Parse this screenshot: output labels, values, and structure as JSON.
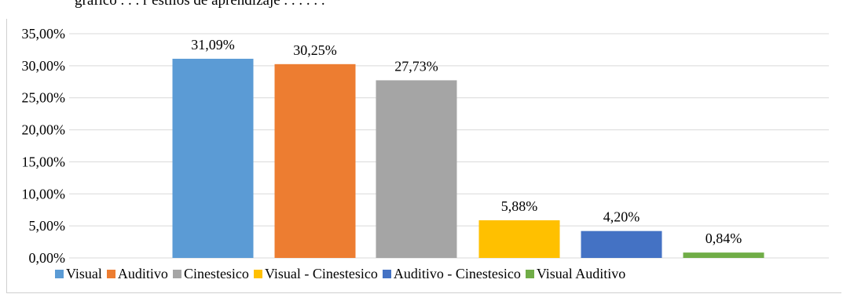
{
  "header": {
    "partial_text": "gráfico . . . r estilos de aprendizaje . . . . . ."
  },
  "chart_data": {
    "type": "bar",
    "categories": [
      "Visual",
      "Auditivo",
      "Cinestesico",
      "Visual - Cinestesico",
      "Auditivo - Cinestesico",
      "Visual Auditivo"
    ],
    "values": [
      31.09,
      30.25,
      27.73,
      5.88,
      4.2,
      0.84
    ],
    "value_labels": [
      "31,09%",
      "30,25%",
      "27,73%",
      "5,88%",
      "4,20%",
      "0,84%"
    ],
    "colors": [
      "#5b9bd5",
      "#ed7d31",
      "#a5a5a5",
      "#ffc000",
      "#4472c4",
      "#70ad47"
    ],
    "ylim": [
      0,
      35
    ],
    "yticks": [
      0,
      5,
      10,
      15,
      20,
      25,
      30,
      35
    ],
    "ytick_labels": [
      "0,00%",
      "5,00%",
      "10,00%",
      "15,00%",
      "20,00%",
      "25,00%",
      "30,00%",
      "35,00%"
    ],
    "grid": true,
    "legend_position": "bottom",
    "legend": [
      "Visual",
      "Auditivo",
      "Cinestesico",
      "Visual - Cinestesico",
      "Auditivo - Cinestesico",
      "Visual Auditivo"
    ],
    "xlabel": "",
    "ylabel": ""
  }
}
